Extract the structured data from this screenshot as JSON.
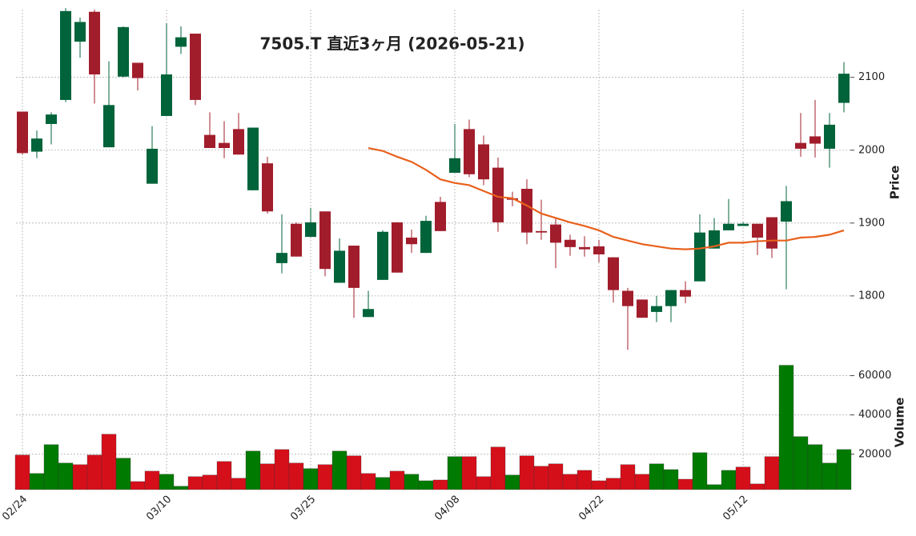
{
  "chart_data": {
    "type": "candlestick",
    "title": "7505.T  直近3ヶ月 (2026-05-21)",
    "categories": [
      "02/24",
      null,
      null,
      null,
      null,
      null,
      null,
      null,
      null,
      null,
      "03/10",
      null,
      null,
      null,
      null,
      null,
      null,
      null,
      null,
      null,
      "03/25",
      null,
      null,
      null,
      null,
      null,
      null,
      null,
      null,
      null,
      "04/08",
      null,
      null,
      null,
      null,
      null,
      null,
      null,
      null,
      null,
      "04/22",
      null,
      null,
      null,
      null,
      null,
      null,
      null,
      null,
      null,
      "05/12",
      null,
      null,
      null,
      null,
      null,
      null,
      null
    ],
    "open": [
      2053,
      1998,
      2036,
      2069,
      2149,
      2190,
      2004,
      2101,
      2120,
      1954,
      2047,
      2142,
      2160,
      2021,
      2010,
      2029,
      1945,
      1982,
      1845,
      1899,
      1881,
      1916,
      1818,
      1869,
      1771,
      1822,
      1901,
      1880,
      1859,
      1929,
      1969,
      2029,
      2008,
      1976,
      1934,
      1947,
      1889,
      1898,
      1877,
      1867,
      1868,
      1853,
      1807,
      1795,
      1778,
      1786,
      1808,
      1820,
      1865,
      1890,
      1896,
      1899,
      1908,
      1902,
      2010,
      2019,
      2002,
      2065
    ],
    "high": [
      2053,
      2027,
      2052,
      2195,
      2182,
      2193,
      2122,
      2170,
      2120,
      2033,
      2174,
      2170,
      2160,
      2052,
      2040,
      2051,
      2031,
      1991,
      1912,
      1901,
      1921,
      1916,
      1879,
      1869,
      1807,
      1890,
      1901,
      1891,
      1910,
      1936,
      2036,
      2042,
      2020,
      1990,
      1943,
      1960,
      1932,
      1908,
      1884,
      1882,
      1877,
      1853,
      1811,
      1795,
      1800,
      1808,
      1820,
      1912,
      1907,
      1933,
      1901,
      1899,
      1908,
      1951,
      2051,
      2069,
      2051,
      2121
    ],
    "low": [
      1994,
      1989,
      2008,
      2066,
      2127,
      2064,
      2004,
      2100,
      2082,
      1954,
      2047,
      2132,
      2062,
      2003,
      1989,
      1994,
      1945,
      1913,
      1831,
      1854,
      1881,
      1827,
      1818,
      1770,
      1771,
      1822,
      1832,
      1859,
      1859,
      1889,
      1969,
      1963,
      1952,
      1888,
      1923,
      1871,
      1877,
      1838,
      1855,
      1854,
      1846,
      1791,
      1726,
      1770,
      1764,
      1764,
      1790,
      1820,
      1865,
      1890,
      1896,
      1856,
      1852,
      1809,
      1991,
      1990,
      1976,
      2052
    ],
    "close": [
      1996,
      2016,
      2049,
      2191,
      2176,
      2104,
      2062,
      2169,
      2099,
      2002,
      2104,
      2155,
      2069,
      2003,
      2003,
      1994,
      2031,
      1916,
      1859,
      1854,
      1901,
      1837,
      1862,
      1811,
      1782,
      1888,
      1832,
      1871,
      1903,
      1889,
      1989,
      1967,
      1960,
      1901,
      1932,
      1887,
      1887,
      1873,
      1867,
      1864,
      1857,
      1808,
      1786,
      1770,
      1786,
      1808,
      1799,
      1887,
      1890,
      1899,
      1899,
      1880,
      1865,
      1930,
      2002,
      2009,
      2035,
      2105
    ],
    "up_color": "#00633a",
    "down_color": "#a11d2b",
    "moving_average": {
      "color": "#e8601c",
      "values": [
        null,
        null,
        null,
        null,
        null,
        null,
        null,
        null,
        null,
        null,
        null,
        null,
        null,
        null,
        null,
        null,
        null,
        null,
        null,
        null,
        null,
        null,
        null,
        null,
        2003,
        1999,
        1991,
        1984,
        1973,
        1960,
        1955,
        1952,
        1944,
        1936,
        1934,
        1924,
        1913,
        1907,
        1901,
        1896,
        1890,
        1881,
        1876,
        1871,
        1868,
        1865,
        1864,
        1865,
        1868,
        1873,
        1873,
        1875,
        1876,
        1876,
        1880,
        1881,
        1884,
        1890
      ]
    },
    "ylabel": "Price",
    "ylim": [
      1723,
      2193
    ],
    "yticks": [
      1800,
      1900,
      2000,
      2100
    ],
    "volume": {
      "values": [
        19600,
        10200,
        24900,
        15500,
        14700,
        19600,
        30200,
        18000,
        6100,
        11400,
        9800,
        3700,
        8600,
        9400,
        16300,
        7800,
        21600,
        15100,
        22400,
        15500,
        12700,
        14700,
        21600,
        19200,
        10200,
        8200,
        11400,
        9800,
        6500,
        6900,
        18800,
        18800,
        8600,
        23700,
        9400,
        19200,
        13900,
        15100,
        9800,
        11800,
        6500,
        7800,
        14700,
        9800,
        15100,
        12200,
        7300,
        20800,
        4500,
        11800,
        13500,
        4900,
        18800,
        65300,
        29000,
        24900,
        15500,
        22400
      ],
      "colors": [
        "#d50f1a",
        "#007a00",
        "#007a00",
        "#007a00",
        "#d50f1a",
        "#d50f1a",
        "#d50f1a",
        "#007a00",
        "#d50f1a",
        "#d50f1a",
        "#007a00",
        "#007a00",
        "#d50f1a",
        "#d50f1a",
        "#d50f1a",
        "#d50f1a",
        "#007a00",
        "#d50f1a",
        "#d50f1a",
        "#d50f1a",
        "#007a00",
        "#d50f1a",
        "#007a00",
        "#d50f1a",
        "#d50f1a",
        "#007a00",
        "#d50f1a",
        "#007a00",
        "#007a00",
        "#d50f1a",
        "#007a00",
        "#d50f1a",
        "#d50f1a",
        "#d50f1a",
        "#007a00",
        "#d50f1a",
        "#d50f1a",
        "#d50f1a",
        "#d50f1a",
        "#d50f1a",
        "#d50f1a",
        "#d50f1a",
        "#d50f1a",
        "#d50f1a",
        "#007a00",
        "#007a00",
        "#d50f1a",
        "#007a00",
        "#007a00",
        "#007a00",
        "#d50f1a",
        "#d50f1a",
        "#d50f1a",
        "#007a00",
        "#007a00",
        "#007a00",
        "#007a00",
        "#007a00"
      ]
    },
    "volume_ylabel": "Volume",
    "volume_ylim": [
      2000,
      70000
    ],
    "volume_yticks": [
      20000,
      40000,
      60000
    ],
    "grid": true
  }
}
